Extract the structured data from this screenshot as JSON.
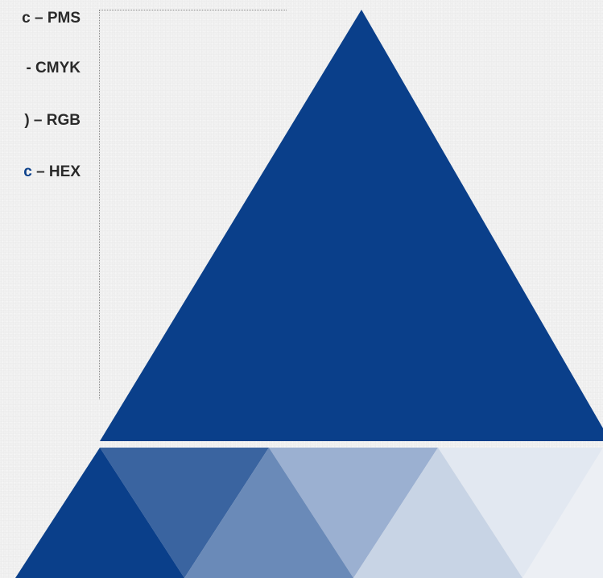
{
  "legend": {
    "items": [
      {
        "prefix": "c",
        "separator": " – ",
        "label": "PMS",
        "prefix_color": "dark"
      },
      {
        "prefix": "",
        "separator": "- ",
        "label": "CMYK",
        "prefix_color": "dark"
      },
      {
        "prefix": ")",
        "separator": " – ",
        "label": "RGB",
        "prefix_color": "dark"
      },
      {
        "prefix": "c",
        "separator": " – ",
        "label": "HEX",
        "prefix_color": "brand"
      }
    ]
  },
  "colors": {
    "brand_blue": "#0a3f8a",
    "tint_1": "#3a64a0",
    "tint_2": "#6a8ab8",
    "tint_3": "#9bb0d1",
    "tint_4": "#c8d4e5",
    "tint_5": "#e2e8f1",
    "background": "#f1f1f1"
  }
}
